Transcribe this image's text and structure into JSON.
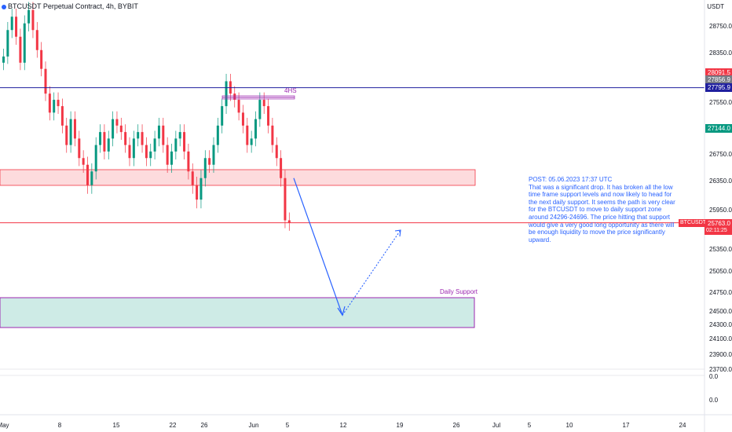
{
  "header": {
    "symbol_title": "BTCUSDT Perpetual Contract, 4h, BYBIT",
    "currency": "USDT"
  },
  "price_axis": {
    "ticks": [
      "28750.0",
      "28350.0",
      "27550.0",
      "26750.0",
      "26350.0",
      "25950.0",
      "25350.0",
      "25050.0",
      "24750.0",
      "24500.0",
      "24300.0",
      "24100.0",
      "23900.0",
      "23700.0",
      "0.0",
      "0.0"
    ]
  },
  "time_axis": {
    "ticks": [
      "May",
      "8",
      "15",
      "22",
      "26",
      "Jun",
      "5",
      "12",
      "19",
      "26",
      "Jul",
      "5",
      "10",
      "17",
      "24"
    ]
  },
  "price_tags": [
    {
      "label": "28091.5",
      "color": "#f23645"
    },
    {
      "label": "27856.9",
      "color": "#787b86"
    },
    {
      "label": "27795.9",
      "color": "#1f1f9e"
    },
    {
      "label": "27144.0",
      "color": "#089981"
    }
  ],
  "current_price": {
    "symbol": "BTCUSDT.P",
    "price": "25763.0",
    "countdown": "02:11:25",
    "color": "#f23645"
  },
  "annotations": {
    "note": "POST: 05.06.2023 17:37 UTC\nThat was a significant drop. It has broken all the low time frame support levels and now likely to head for the next daily support. It seems the path is very clear for the BTCUSDT to move to daily support zone around 24296-24696. The price hitting that support would give a very good long opportunity as there will be enough liquidity to move the price significantly upward.",
    "daily_support_label": "Daily Support",
    "pattern_label": "4HS"
  },
  "chart_data": {
    "type": "candlestick",
    "title": "BTCUSDT Perpetual Contract, 4h, BYBIT",
    "interval": "4h",
    "y_unit": "USDT",
    "x_range": [
      "May",
      "24"
    ],
    "horizontal_lines": [
      {
        "name": "resistance",
        "price": 27795.9,
        "color": "#1f1f9e"
      },
      {
        "name": "current",
        "price": 25763.0,
        "color": "#f23645"
      }
    ],
    "zones": [
      {
        "name": "resistance zone",
        "price_top": 26600,
        "price_bottom": 26250,
        "color": "#f23645"
      },
      {
        "name": "Daily Support",
        "price_top": 24696,
        "price_bottom": 24296,
        "color": "#089981"
      }
    ],
    "projection": [
      {
        "from_price": 26400,
        "to_price": 24450,
        "style": "solid"
      },
      {
        "from_price": 24450,
        "to_price": 25650,
        "style": "dotted"
      }
    ],
    "key_levels": {
      "high_marker": 28091.5,
      "mid_marker": 27856.9,
      "green_marker": 27144.0,
      "last": 25763.0
    }
  }
}
